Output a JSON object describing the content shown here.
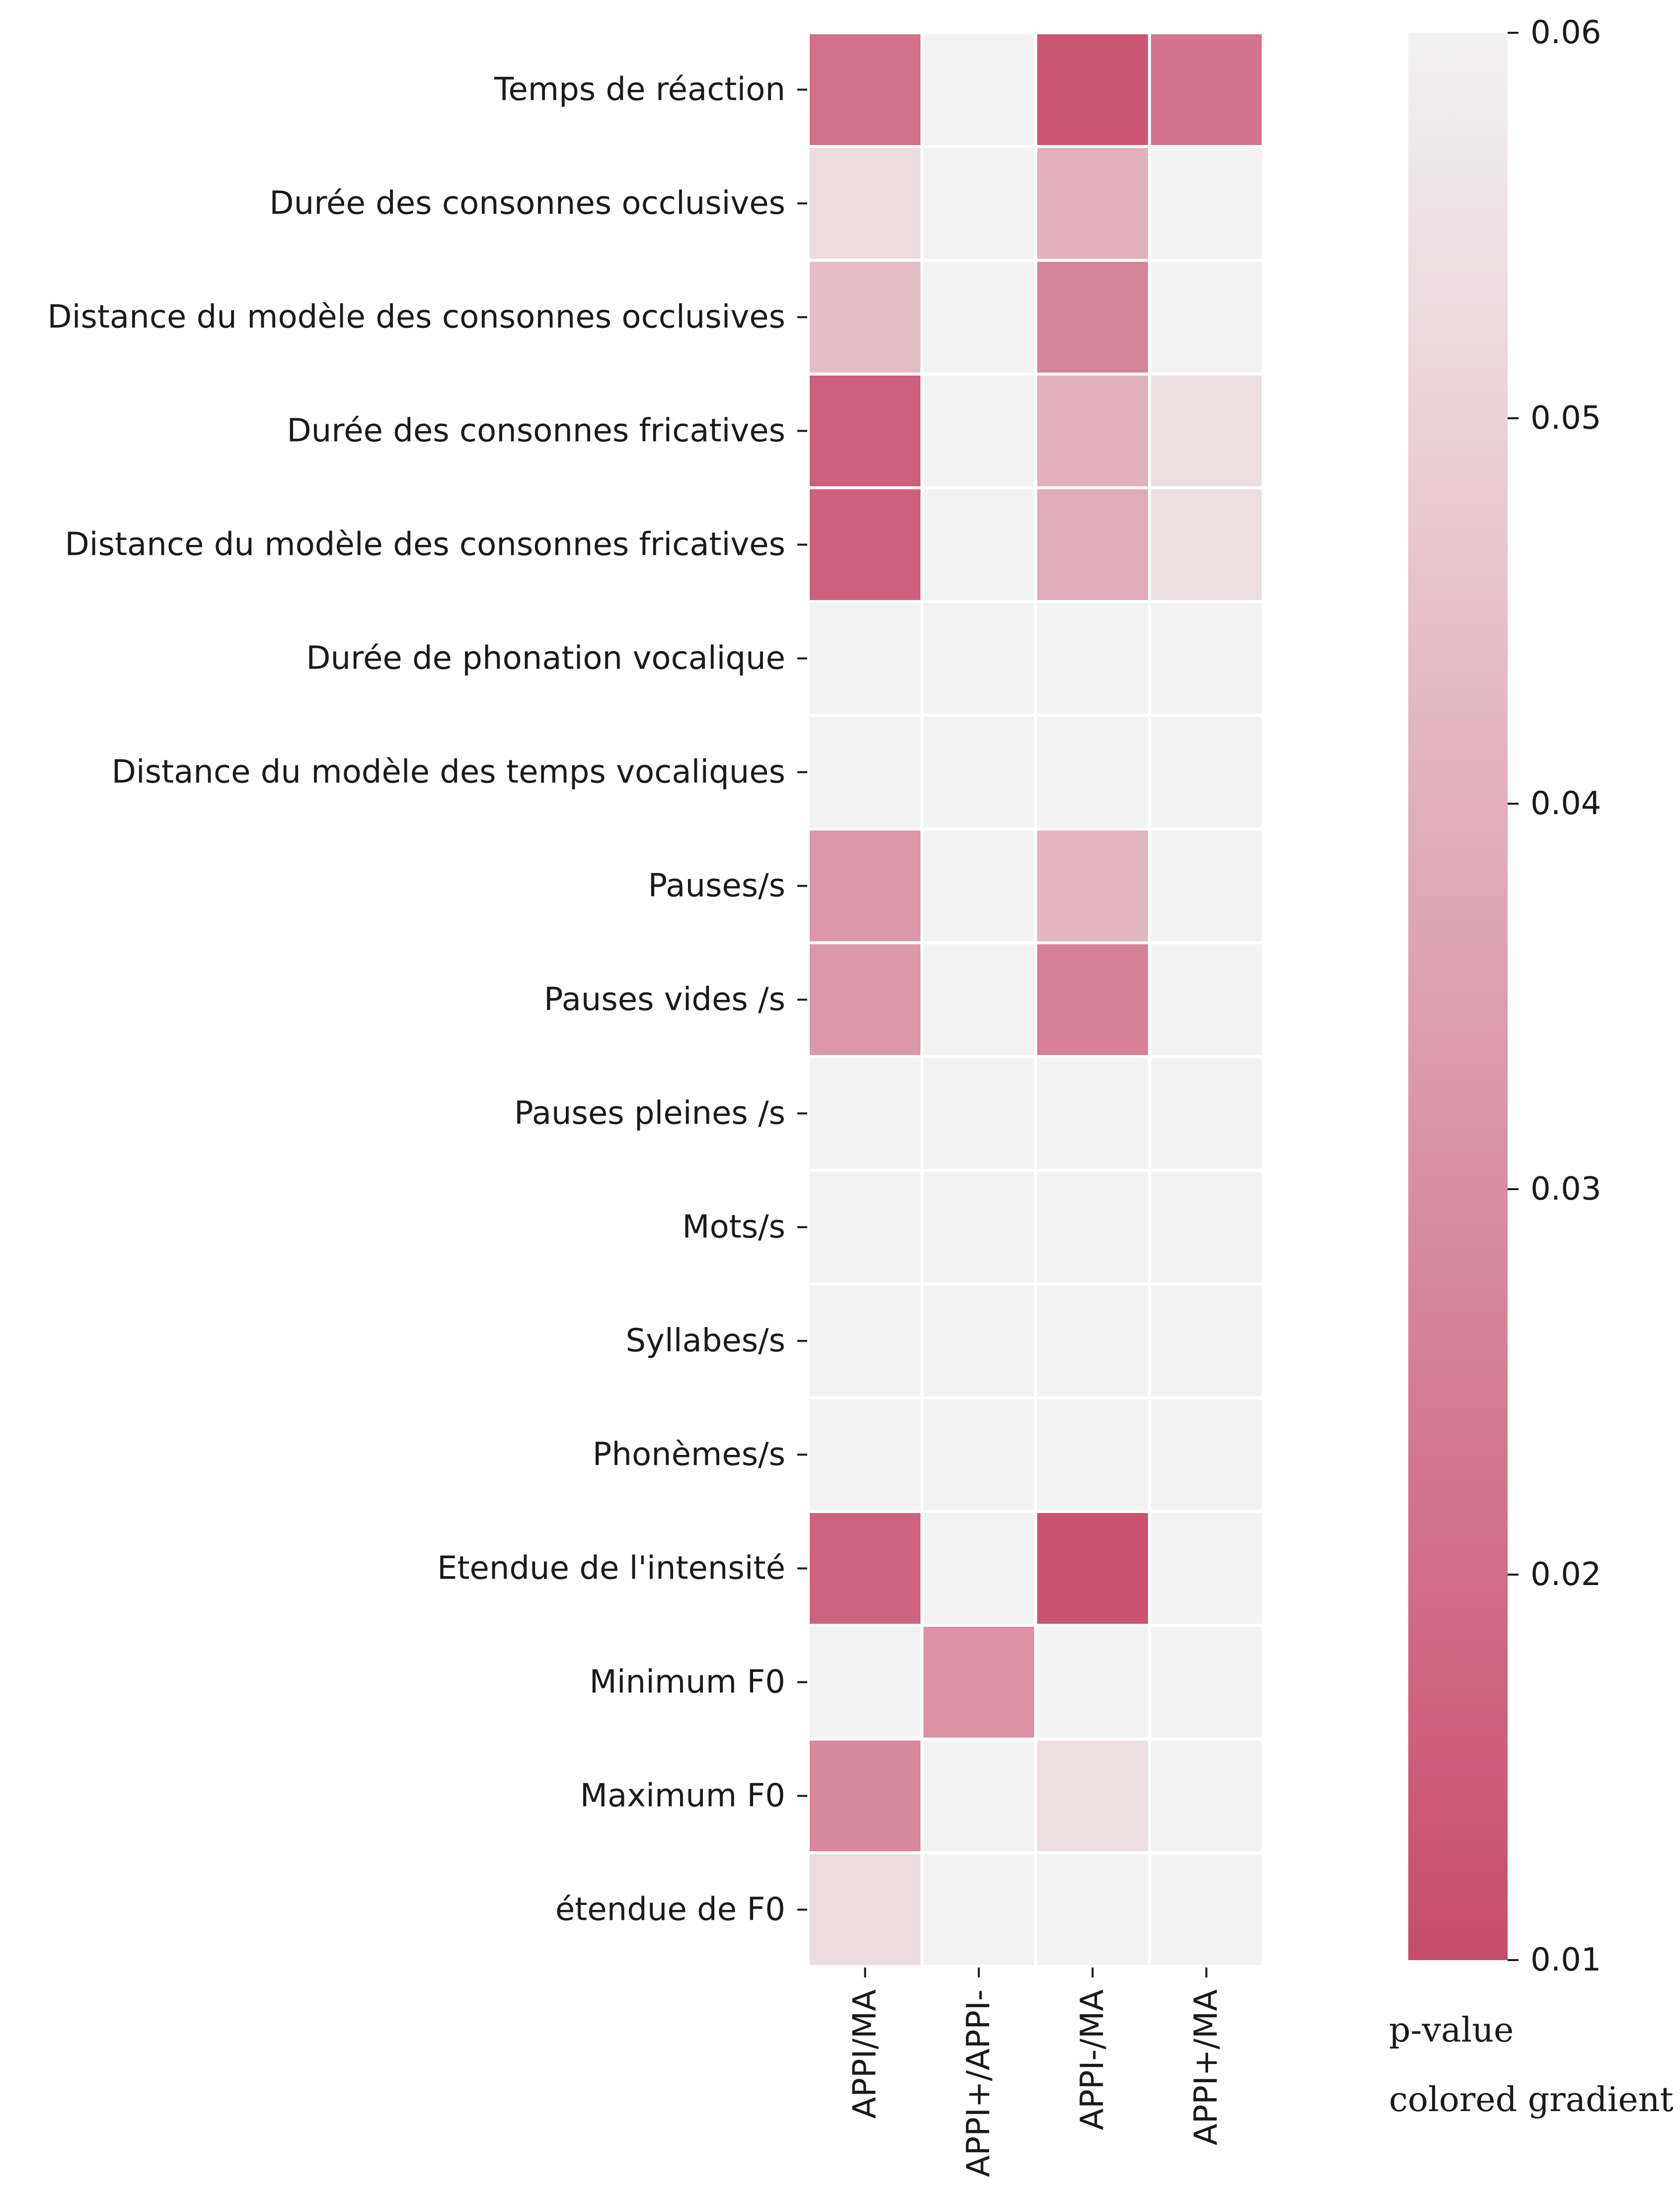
{
  "chart_data": {
    "type": "heatmap",
    "title": "",
    "rows": [
      "Temps de réaction",
      "Durée des consonnes occlusives",
      "Distance du modèle des consonnes occlusives",
      "Durée des consonnes fricatives",
      "Distance du modèle des consonnes fricatives",
      "Durée de phonation vocalique",
      "Distance du modèle des temps vocaliques",
      "Pauses/s",
      "Pauses vides /s",
      "Pauses pleines /s",
      "Mots/s",
      "Syllabes/s",
      "Phonèmes/s",
      "Etendue de l'intensité",
      "Minimum  F0",
      "Maximum F0",
      "étendue de F0"
    ],
    "columns": [
      "APPI/MA",
      "APPI+/APPI-",
      "APPI-/MA",
      "APPI+/MA"
    ],
    "values": [
      [
        0.021,
        0.06,
        0.013,
        0.022
      ],
      [
        0.053,
        0.06,
        0.04,
        0.06
      ],
      [
        0.044,
        0.06,
        0.027,
        0.06
      ],
      [
        0.016,
        0.06,
        0.04,
        0.054
      ],
      [
        0.016,
        0.06,
        0.039,
        0.054
      ],
      [
        0.06,
        0.06,
        0.06,
        0.06
      ],
      [
        0.06,
        0.06,
        0.06,
        0.06
      ],
      [
        0.033,
        0.06,
        0.042,
        0.06
      ],
      [
        0.033,
        0.06,
        0.026,
        0.06
      ],
      [
        0.06,
        0.06,
        0.06,
        0.06
      ],
      [
        0.06,
        0.06,
        0.06,
        0.06
      ],
      [
        0.06,
        0.06,
        0.06,
        0.06
      ],
      [
        0.06,
        0.06,
        0.06,
        0.06
      ],
      [
        0.017,
        0.06,
        0.012,
        0.06
      ],
      [
        0.06,
        0.031,
        0.06,
        0.06
      ],
      [
        0.028,
        0.06,
        0.054,
        0.06
      ],
      [
        0.053,
        0.06,
        0.06,
        0.06
      ]
    ],
    "colorbar": {
      "min": 0.01,
      "max": 0.06,
      "ticks": [
        0.06,
        0.05,
        0.04,
        0.03,
        0.02,
        0.01
      ],
      "tick_labels": [
        "0.06",
        "0.05",
        "0.04",
        "0.03",
        "0.02",
        "0.01"
      ],
      "color_low": "#c84c6c",
      "color_high": "#f2f2f2"
    },
    "caption": [
      "p-value",
      "colored gradient"
    ],
    "xlabel": "",
    "ylabel": ""
  }
}
